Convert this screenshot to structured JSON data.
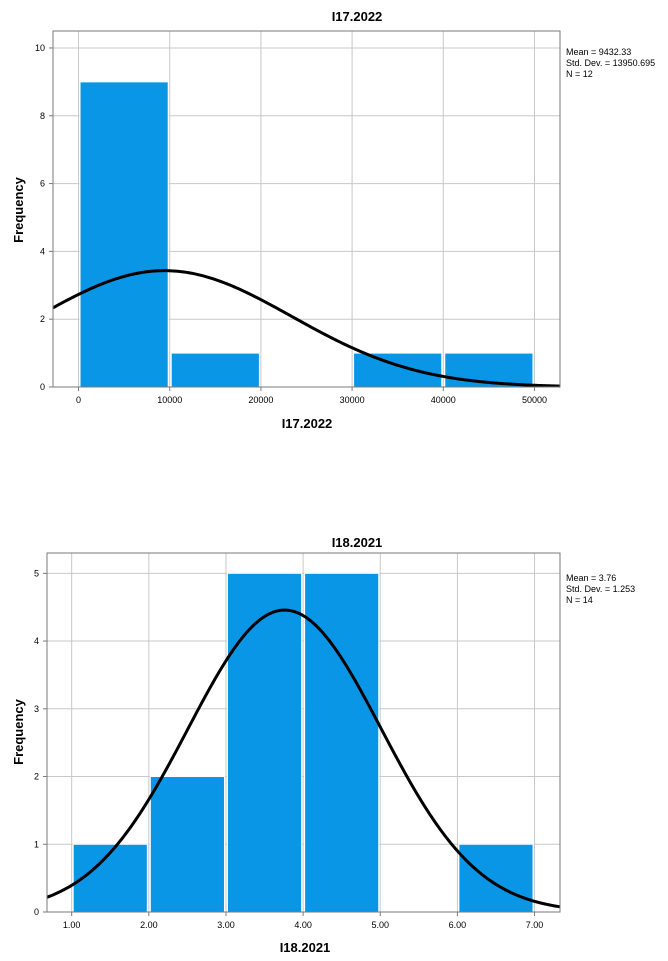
{
  "chart_data": [
    {
      "type": "bar",
      "title": "I17.2022",
      "xlabel": "I17.2022",
      "ylabel": "Frequency",
      "bins": [
        {
          "x0": 0,
          "x1": 10000,
          "value": 9
        },
        {
          "x0": 10000,
          "x1": 20000,
          "value": 1
        },
        {
          "x0": 20000,
          "x1": 30000,
          "value": 0
        },
        {
          "x0": 30000,
          "x1": 40000,
          "value": 1
        },
        {
          "x0": 40000,
          "x1": 50000,
          "value": 1
        }
      ],
      "xlim": [
        -2800,
        52800
      ],
      "ylim": [
        0,
        10.5
      ],
      "x_ticks": [
        0,
        10000,
        20000,
        30000,
        40000,
        50000
      ],
      "x_tick_labels": [
        "0",
        "10000",
        "20000",
        "30000",
        "40000",
        "50000"
      ],
      "y_ticks": [
        0,
        2,
        4,
        6,
        8,
        10
      ],
      "y_tick_labels": [
        "0",
        "2",
        "4",
        "6",
        "8",
        "10"
      ],
      "grid": true,
      "bar_color": "#0a96e6",
      "normal_curve": {
        "mean": 9432.33,
        "sd": 13950.695,
        "n": 12,
        "bin_width": 10000
      },
      "stats": [
        "Mean = 9432.33",
        "Std. Dev. = 13950.695",
        "N = 12"
      ]
    },
    {
      "type": "bar",
      "title": "I18.2021",
      "xlabel": "I18.2021",
      "ylabel": "Frequency",
      "bins": [
        {
          "x0": 1,
          "x1": 2,
          "value": 1
        },
        {
          "x0": 2,
          "x1": 3,
          "value": 2
        },
        {
          "x0": 3,
          "x1": 4,
          "value": 5
        },
        {
          "x0": 4,
          "x1": 5,
          "value": 5
        },
        {
          "x0": 5,
          "x1": 6,
          "value": 0
        },
        {
          "x0": 6,
          "x1": 7,
          "value": 1
        }
      ],
      "xlim": [
        0.68,
        7.33
      ],
      "ylim": [
        0,
        5.3
      ],
      "x_ticks": [
        1,
        2,
        3,
        4,
        5,
        6,
        7
      ],
      "x_tick_labels": [
        "1.00",
        "2.00",
        "3.00",
        "4.00",
        "5.00",
        "6.00",
        "7.00"
      ],
      "y_ticks": [
        0,
        1,
        2,
        3,
        4,
        5
      ],
      "y_tick_labels": [
        "0",
        "1",
        "2",
        "3",
        "4",
        "5"
      ],
      "grid": true,
      "bar_color": "#0a96e6",
      "normal_curve": {
        "mean": 3.76,
        "sd": 1.253,
        "n": 14,
        "bin_width": 1
      },
      "stats": [
        "Mean = 3.76",
        "Std. Dev. = 1.253",
        "N = 14"
      ]
    }
  ]
}
